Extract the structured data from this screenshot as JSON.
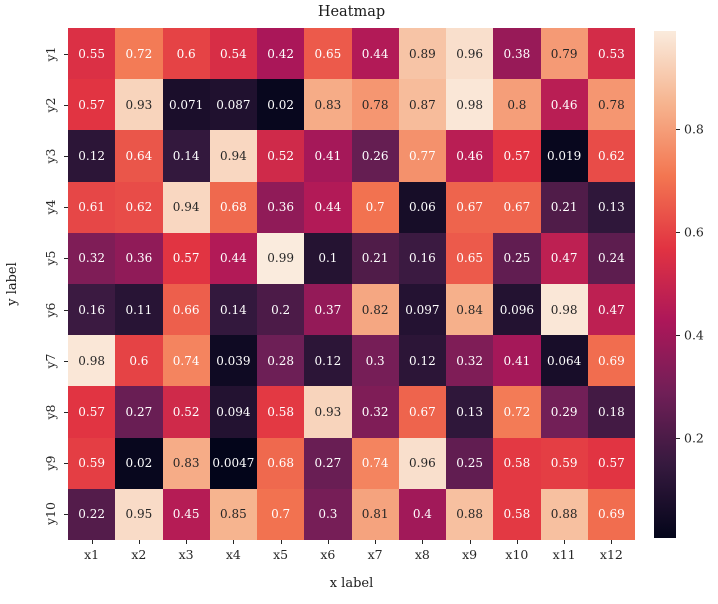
{
  "figure": {
    "background": "#ffffff"
  },
  "chart_data": {
    "type": "heatmap",
    "title": "Heatmap",
    "xlabel": "x label",
    "ylabel": "y label",
    "x_categories": [
      "x1",
      "x2",
      "x3",
      "x4",
      "x5",
      "x6",
      "x7",
      "x8",
      "x9",
      "x10",
      "x11",
      "x12"
    ],
    "y_categories": [
      "y1",
      "y2",
      "y3",
      "y4",
      "y5",
      "y6",
      "y7",
      "y8",
      "y9",
      "y10"
    ],
    "values": [
      [
        0.55,
        0.72,
        0.6,
        0.54,
        0.42,
        0.65,
        0.44,
        0.89,
        0.96,
        0.38,
        0.79,
        0.53
      ],
      [
        0.57,
        0.93,
        0.071,
        0.087,
        0.02,
        0.83,
        0.78,
        0.87,
        0.98,
        0.8,
        0.46,
        0.78
      ],
      [
        0.12,
        0.64,
        0.14,
        0.94,
        0.52,
        0.41,
        0.26,
        0.77,
        0.46,
        0.57,
        0.019,
        0.62
      ],
      [
        0.61,
        0.62,
        0.94,
        0.68,
        0.36,
        0.44,
        0.7,
        0.06,
        0.67,
        0.67,
        0.21,
        0.13
      ],
      [
        0.32,
        0.36,
        0.57,
        0.44,
        0.99,
        0.1,
        0.21,
        0.16,
        0.65,
        0.25,
        0.47,
        0.24
      ],
      [
        0.16,
        0.11,
        0.66,
        0.14,
        0.2,
        0.37,
        0.82,
        0.097,
        0.84,
        0.096,
        0.98,
        0.47
      ],
      [
        0.98,
        0.6,
        0.74,
        0.039,
        0.28,
        0.12,
        0.3,
        0.12,
        0.32,
        0.41,
        0.064,
        0.69
      ],
      [
        0.57,
        0.27,
        0.52,
        0.094,
        0.58,
        0.93,
        0.32,
        0.67,
        0.13,
        0.72,
        0.29,
        0.18
      ],
      [
        0.59,
        0.02,
        0.83,
        0.0047,
        0.68,
        0.27,
        0.74,
        0.96,
        0.25,
        0.58,
        0.59,
        0.57
      ],
      [
        0.22,
        0.95,
        0.45,
        0.85,
        0.7,
        0.3,
        0.81,
        0.4,
        0.88,
        0.58,
        0.88,
        0.69
      ]
    ],
    "value_format": ".2g",
    "vmin": 0.0047,
    "vmax": 0.99,
    "grid": false,
    "legend_position": "colorbar-right",
    "colormap": "rocket",
    "colormap_anchors": [
      {
        "t": 0.0,
        "rgb": [
          3,
          5,
          26
        ]
      },
      {
        "t": 0.143,
        "rgb": [
          53,
          25,
          62
        ]
      },
      {
        "t": 0.286,
        "rgb": [
          112,
          31,
          87
        ]
      },
      {
        "t": 0.429,
        "rgb": [
          173,
          23,
          89
        ]
      },
      {
        "t": 0.571,
        "rgb": [
          225,
          51,
          66
        ]
      },
      {
        "t": 0.714,
        "rgb": [
          243,
          118,
          81
        ]
      },
      {
        "t": 0.857,
        "rgb": [
          246,
          180,
          143
        ]
      },
      {
        "t": 1.0,
        "rgb": [
          250,
          235,
          221
        ]
      }
    ],
    "colorbar": {
      "ticks": [
        0.2,
        0.4,
        0.6,
        0.8
      ],
      "tick_labels": [
        "0.2",
        "0.4",
        "0.6",
        "0.8"
      ]
    },
    "annotation_colors": {
      "dark": "#262626",
      "light": "#ffffff"
    },
    "luminance_threshold": 0.408
  }
}
